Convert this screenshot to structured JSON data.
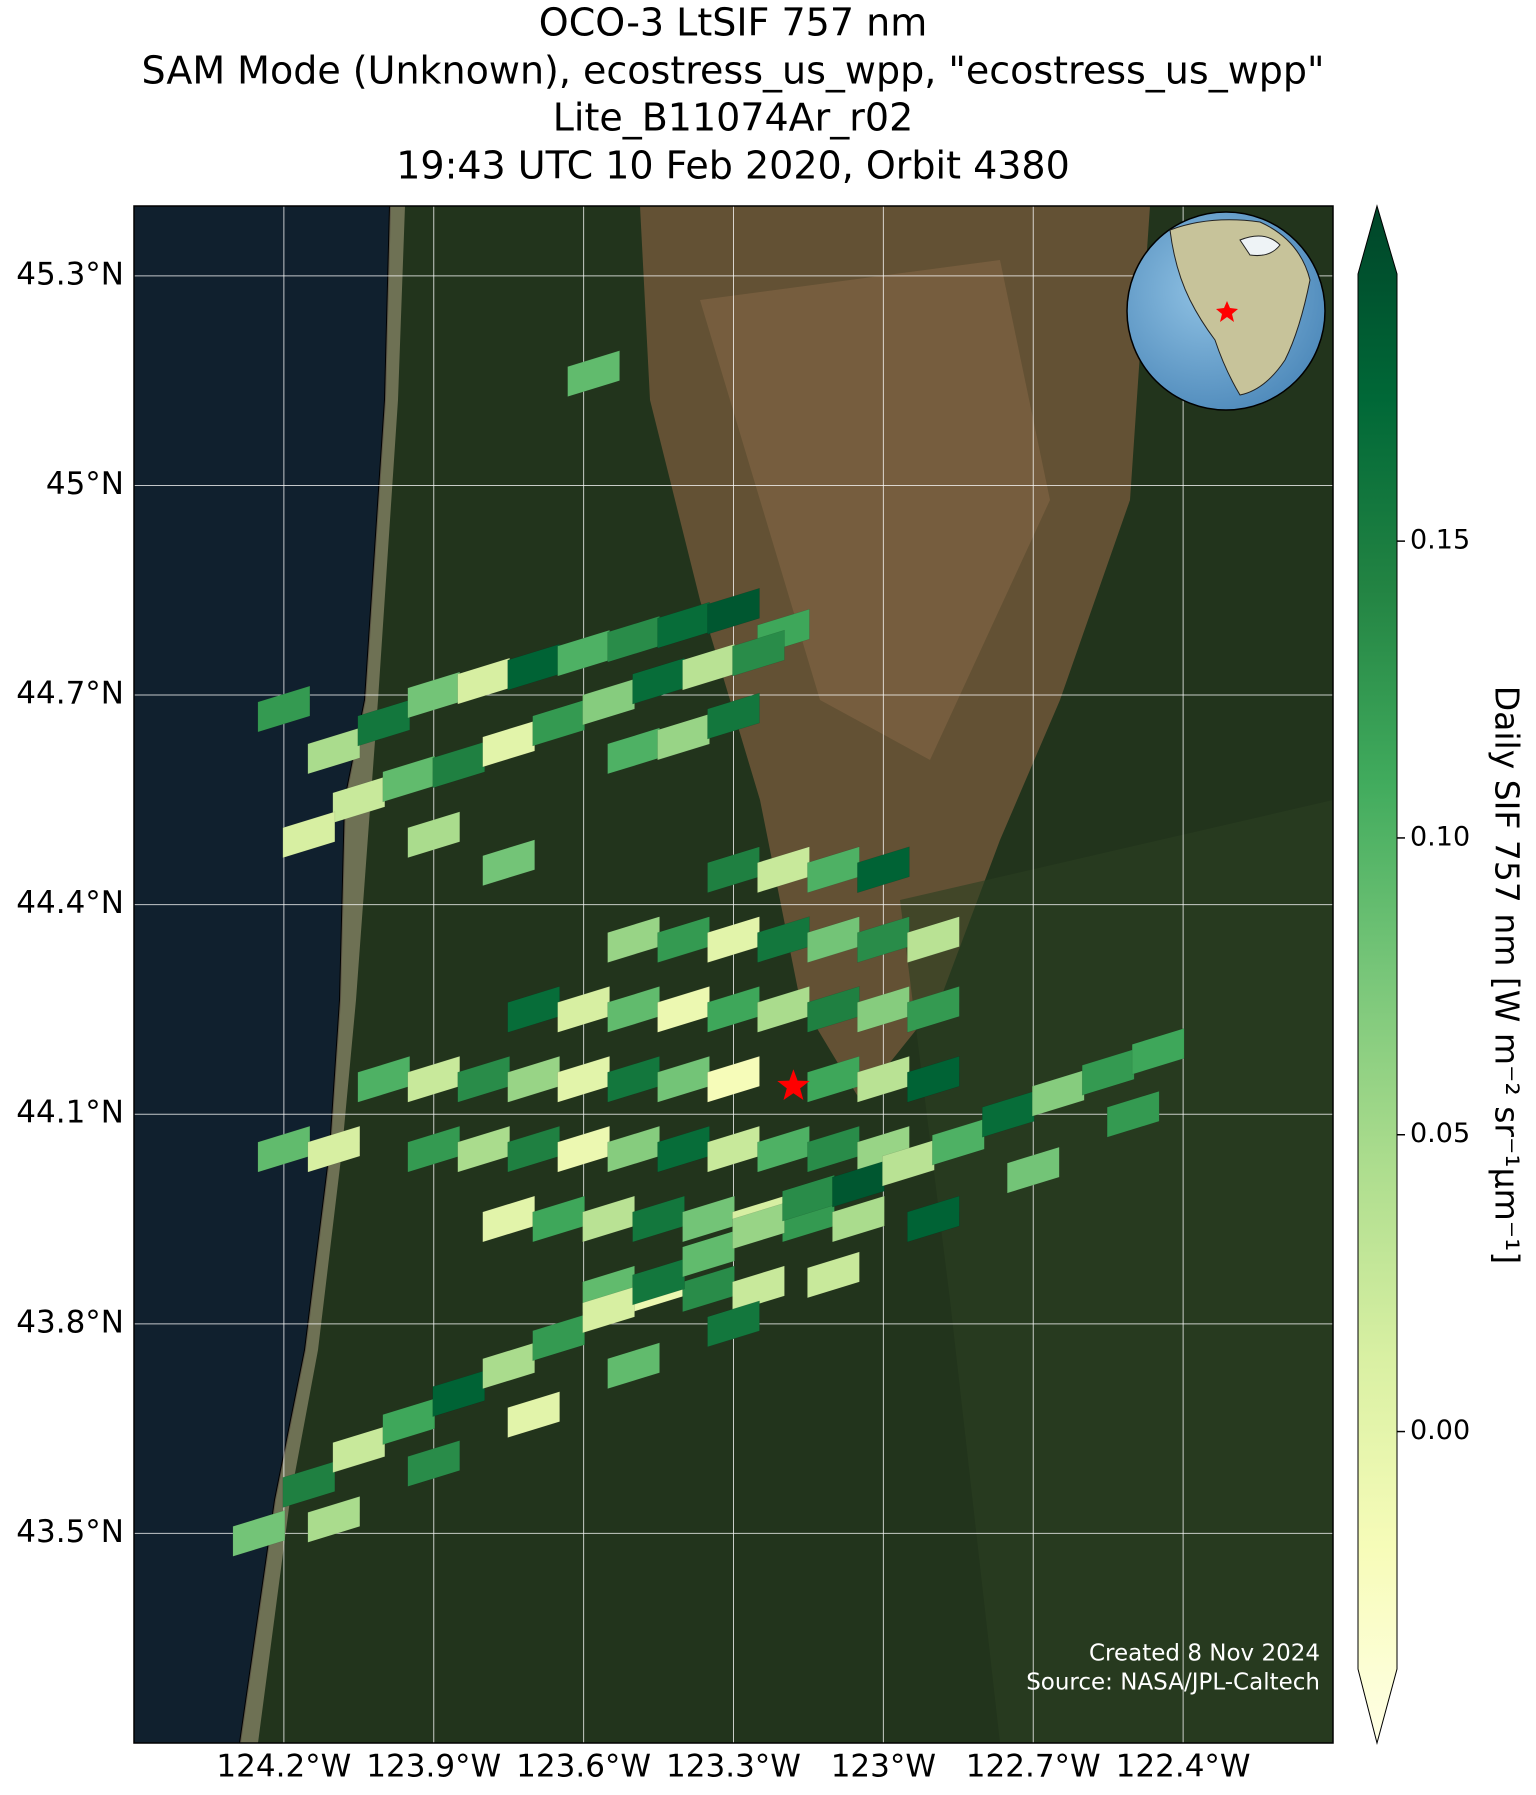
{
  "chart_data": {
    "type": "map",
    "title": [
      "OCO-3 LtSIF 757 nm",
      "SAM Mode (Unknown), ecostress_us_wpp, \"ecostress_us_wpp\"",
      "Lite_B11074Ar_r02",
      "19:43 UTC 10 Feb 2020, Orbit 4380"
    ],
    "xlim": [
      -124.5,
      -122.1
    ],
    "ylim": [
      43.2,
      45.4
    ],
    "xticks": [
      {
        "value": -124.2,
        "label": "124.2°W"
      },
      {
        "value": -123.9,
        "label": "123.9°W"
      },
      {
        "value": -123.6,
        "label": "123.6°W"
      },
      {
        "value": -123.3,
        "label": "123.3°W"
      },
      {
        "value": -123.0,
        "label": "123°W"
      },
      {
        "value": -122.7,
        "label": "122.7°W"
      },
      {
        "value": -122.4,
        "label": "122.4°W"
      }
    ],
    "yticks": [
      {
        "value": 45.3,
        "label": "45.3°N"
      },
      {
        "value": 45.0,
        "label": "45°N"
      },
      {
        "value": 44.7,
        "label": "44.7°N"
      },
      {
        "value": 44.4,
        "label": "44.4°N"
      },
      {
        "value": 44.1,
        "label": "44.1°N"
      },
      {
        "value": 43.8,
        "label": "43.8°N"
      },
      {
        "value": 43.5,
        "label": "43.5°N"
      }
    ],
    "grid": true,
    "colormap": [
      "#ffffe5",
      "#f7fcb9",
      "#d9f0a3",
      "#addd8e",
      "#78c679",
      "#41ab5d",
      "#238443",
      "#006837",
      "#004529"
    ],
    "clim": [
      -0.04,
      0.195
    ],
    "cticks": [
      {
        "value": 0,
        "label": "0.00"
      },
      0.05,
      {
        "value": 0.1,
        "label": "0.10"
      },
      0.15
    ],
    "colorbar_label": "Daily SIF 757 nm [W m⁻² sr⁻¹μm⁻¹]",
    "target": {
      "lon": -123.18,
      "lat": 44.14
    },
    "annotations": [
      "Created 8 Nov 2024",
      "Source: NASA/JPL-Caltech"
    ],
    "lon": [
      -124.2,
      -124.1,
      -124.0,
      -123.9,
      -123.8,
      -123.7,
      -123.6,
      -123.5,
      -123.4,
      -123.3,
      -123.2,
      -124.05,
      -123.95,
      -123.85,
      -123.75,
      -123.65,
      -123.55,
      -123.45,
      -123.35,
      -123.25,
      -123.5,
      -123.4,
      -123.3,
      -123.58,
      -124.15,
      -123.9,
      -123.75,
      -123.3,
      -123.2,
      -123.1,
      -123.0,
      -123.5,
      -123.4,
      -123.3,
      -123.2,
      -123.1,
      -123.0,
      -122.9,
      -123.7,
      -123.6,
      -123.5,
      -123.4,
      -123.3,
      -123.2,
      -123.1,
      -123.0,
      -122.9,
      -124.0,
      -123.9,
      -123.8,
      -123.7,
      -123.6,
      -123.5,
      -123.4,
      -123.3,
      -123.1,
      -123.0,
      -122.9,
      -124.2,
      -124.1,
      -123.9,
      -123.8,
      -123.7,
      -123.6,
      -123.5,
      -123.4,
      -123.3,
      -123.2,
      -123.1,
      -123.0,
      -123.75,
      -123.65,
      -123.55,
      -123.45,
      -123.35,
      -123.25,
      -123.15,
      -123.05,
      -123.55,
      -123.45,
      -123.35,
      -123.25,
      -124.25,
      -124.15,
      -124.05,
      -123.95,
      -123.85,
      -123.75,
      -123.65,
      -123.55,
      -123.45,
      -123.35,
      -123.25,
      -123.15,
      -123.05,
      -122.95,
      -122.85,
      -122.75,
      -122.65,
      -122.55,
      -122.45,
      -124.1,
      -123.9,
      -123.7,
      -123.5,
      -123.3,
      -123.1,
      -122.9,
      -122.7,
      -122.5
    ],
    "lat": [
      44.68,
      44.62,
      44.66,
      44.7,
      44.72,
      44.74,
      44.76,
      44.78,
      44.8,
      44.82,
      44.79,
      44.55,
      44.58,
      44.6,
      44.63,
      44.66,
      44.69,
      44.72,
      44.74,
      44.76,
      44.62,
      44.64,
      44.67,
      45.16,
      44.5,
      44.5,
      44.46,
      44.45,
      44.45,
      44.45,
      44.45,
      44.35,
      44.35,
      44.35,
      44.35,
      44.35,
      44.35,
      44.35,
      44.25,
      44.25,
      44.25,
      44.25,
      44.25,
      44.25,
      44.25,
      44.25,
      44.25,
      44.15,
      44.15,
      44.15,
      44.15,
      44.15,
      44.15,
      44.15,
      44.15,
      44.15,
      44.15,
      44.15,
      44.05,
      44.05,
      44.05,
      44.05,
      44.05,
      44.05,
      44.05,
      44.05,
      44.05,
      44.05,
      44.05,
      44.05,
      43.95,
      43.95,
      43.95,
      43.95,
      43.95,
      43.95,
      43.95,
      43.95,
      43.85,
      43.85,
      43.85,
      43.85,
      43.5,
      43.57,
      43.62,
      43.66,
      43.7,
      43.74,
      43.78,
      43.82,
      43.86,
      43.9,
      43.94,
      43.98,
      44.0,
      44.03,
      44.06,
      44.1,
      44.13,
      44.16,
      44.19,
      43.52,
      43.6,
      43.67,
      43.74,
      43.8,
      43.87,
      43.95,
      44.02,
      44.1
    ],
    "values": [
      0.12,
      0.05,
      0.15,
      0.08,
      0.02,
      0.17,
      0.1,
      0.13,
      0.16,
      0.18,
      0.11,
      0.03,
      0.09,
      0.14,
      0.01,
      0.12,
      0.07,
      0.16,
      0.04,
      0.13,
      0.1,
      0.06,
      0.15,
      0.09,
      0.02,
      0.05,
      0.08,
      0.14,
      0.03,
      0.1,
      0.17,
      0.06,
      0.12,
      0.01,
      0.15,
      0.08,
      0.13,
      0.04,
      0.16,
      0.02,
      0.09,
      0.0,
      0.11,
      0.05,
      0.14,
      0.07,
      0.12,
      0.1,
      0.03,
      0.13,
      0.06,
      0.01,
      0.15,
      0.08,
      -0.01,
      0.11,
      0.04,
      0.17,
      0.09,
      0.02,
      0.12,
      0.05,
      0.14,
      0.0,
      0.07,
      0.16,
      0.03,
      0.1,
      0.13,
      0.06,
      0.01,
      0.11,
      0.04,
      0.15,
      0.08,
      0.02,
      0.12,
      0.05,
      0.09,
      0.0,
      0.13,
      0.03,
      0.08,
      0.14,
      0.03,
      0.11,
      0.17,
      0.05,
      0.12,
      0.02,
      0.15,
      0.09,
      0.06,
      0.13,
      0.18,
      0.04,
      0.1,
      0.16,
      0.07,
      0.12,
      0.11,
      0.05,
      0.13,
      0.01,
      0.09,
      0.15,
      0.03,
      0.17,
      0.08,
      0.12
    ]
  }
}
